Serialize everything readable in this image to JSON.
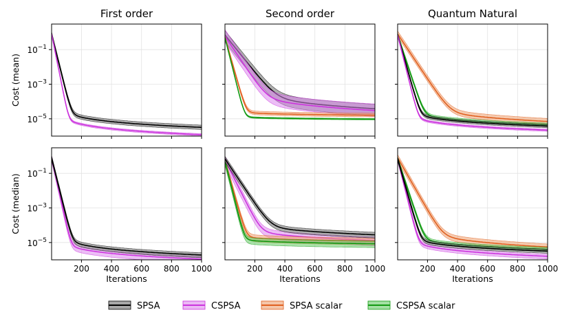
{
  "chart_data": {
    "type": "line",
    "columns": [
      "First order",
      "Second order",
      "Quantum Natural"
    ],
    "rows": [
      "Cost (mean)",
      "Cost (median)"
    ],
    "xlabel": "Iterations",
    "xlim": [
      1,
      1000
    ],
    "xticks": [
      200,
      400,
      600,
      800,
      1000
    ],
    "ylog_lim": [
      1e-06,
      3
    ],
    "yticks": [
      {
        "value": 0.1,
        "base": "10",
        "exp": "−1"
      },
      {
        "value": 0.001,
        "base": "10",
        "exp": "−3"
      },
      {
        "value": 1e-05,
        "base": "10",
        "exp": "−5"
      }
    ],
    "legend": [
      {
        "name": "SPSA",
        "color": "#000000",
        "fill": "#6e6e6e"
      },
      {
        "name": "CSPSA",
        "color": "#cc33dd",
        "fill": "#dd88ee"
      },
      {
        "name": "SPSA scalar",
        "color": "#e06020",
        "fill": "#eea070"
      },
      {
        "name": "CSPSA scalar",
        "color": "#119911",
        "fill": "#66cc66"
      }
    ],
    "series_params_note": "each curve: start value at x=1, k = fast decay rate, final value at x=1000; band = [low factor, high factor]",
    "panels": [
      {
        "row": 0,
        "col": 0,
        "series": [
          {
            "name": "SPSA",
            "start": 0.8,
            "k": 0.08,
            "knee": 6e-05,
            "final": 3.2e-06,
            "band": [
              0.75,
              1.35
            ]
          },
          {
            "name": "CSPSA",
            "start": 0.8,
            "k": 0.1,
            "knee": 2.5e-05,
            "final": 1.2e-06,
            "band": [
              0.85,
              1.15
            ]
          }
        ]
      },
      {
        "row": 0,
        "col": 1,
        "series": [
          {
            "name": "SPSA",
            "start": 0.7,
            "k": 0.025,
            "knee": 0.003,
            "final": 3.8e-05,
            "band": [
              0.4,
              1.8
            ]
          },
          {
            "name": "CSPSA",
            "start": 0.6,
            "k": 0.03,
            "knee": 0.002,
            "final": 3e-05,
            "band": [
              0.45,
              2.4
            ]
          },
          {
            "name": "SPSA scalar",
            "start": 0.5,
            "k": 0.07,
            "knee": 3e-05,
            "final": 1.6e-05,
            "band": [
              0.8,
              1.3
            ]
          },
          {
            "name": "CSPSA scalar",
            "start": 0.5,
            "k": 0.08,
            "knee": 1.5e-05,
            "final": 9.5e-06,
            "band": [
              0.9,
              1.1
            ]
          }
        ]
      },
      {
        "row": 0,
        "col": 2,
        "series": [
          {
            "name": "SPSA scalar",
            "start": 0.8,
            "k": 0.03,
            "knee": 0.0003,
            "final": 7e-06,
            "band": [
              0.7,
              1.5
            ]
          },
          {
            "name": "CSPSA scalar",
            "start": 0.7,
            "k": 0.06,
            "knee": 6e-05,
            "final": 4.5e-06,
            "band": [
              0.8,
              1.25
            ]
          },
          {
            "name": "SPSA",
            "start": 0.7,
            "k": 0.07,
            "knee": 5e-05,
            "final": 3.8e-06,
            "band": [
              0.8,
              1.25
            ]
          },
          {
            "name": "CSPSA",
            "start": 0.7,
            "k": 0.08,
            "knee": 3e-05,
            "final": 2.2e-06,
            "band": [
              0.85,
              1.15
            ]
          }
        ]
      },
      {
        "row": 1,
        "col": 0,
        "series": [
          {
            "name": "CSPSA",
            "start": 0.8,
            "k": 0.09,
            "knee": 2e-05,
            "final": 1.1e-06,
            "band": [
              0.6,
              1.4
            ]
          },
          {
            "name": "SPSA",
            "start": 0.8,
            "k": 0.08,
            "knee": 4e-05,
            "final": 1.9e-06,
            "band": [
              0.7,
              1.35
            ]
          }
        ]
      },
      {
        "row": 1,
        "col": 1,
        "series": [
          {
            "name": "CSPSA",
            "start": 0.6,
            "k": 0.04,
            "knee": 0.0002,
            "final": 1.3e-05,
            "band": [
              0.5,
              1.6
            ]
          },
          {
            "name": "SPSA scalar",
            "start": 0.5,
            "k": 0.07,
            "knee": 3e-05,
            "final": 1.2e-05,
            "band": [
              0.6,
              1.5
            ]
          },
          {
            "name": "CSPSA scalar",
            "start": 0.5,
            "k": 0.08,
            "knee": 2e-05,
            "final": 8.5e-06,
            "band": [
              0.6,
              1.45
            ]
          },
          {
            "name": "SPSA",
            "start": 0.7,
            "k": 0.03,
            "knee": 0.0005,
            "final": 2.8e-05,
            "band": [
              0.65,
              1.4
            ]
          }
        ]
      },
      {
        "row": 1,
        "col": 2,
        "series": [
          {
            "name": "SPSA scalar",
            "start": 0.8,
            "k": 0.035,
            "knee": 0.0003,
            "final": 5.5e-06,
            "band": [
              0.65,
              1.5
            ]
          },
          {
            "name": "CSPSA",
            "start": 0.7,
            "k": 0.08,
            "knee": 3e-05,
            "final": 1.6e-06,
            "band": [
              0.7,
              1.3
            ]
          },
          {
            "name": "CSPSA scalar",
            "start": 0.7,
            "k": 0.06,
            "knee": 5e-05,
            "final": 4e-06,
            "band": [
              0.75,
              1.3
            ]
          },
          {
            "name": "SPSA",
            "start": 0.7,
            "k": 0.07,
            "knee": 4e-05,
            "final": 3.2e-06,
            "band": [
              0.75,
              1.3
            ]
          }
        ]
      }
    ]
  }
}
